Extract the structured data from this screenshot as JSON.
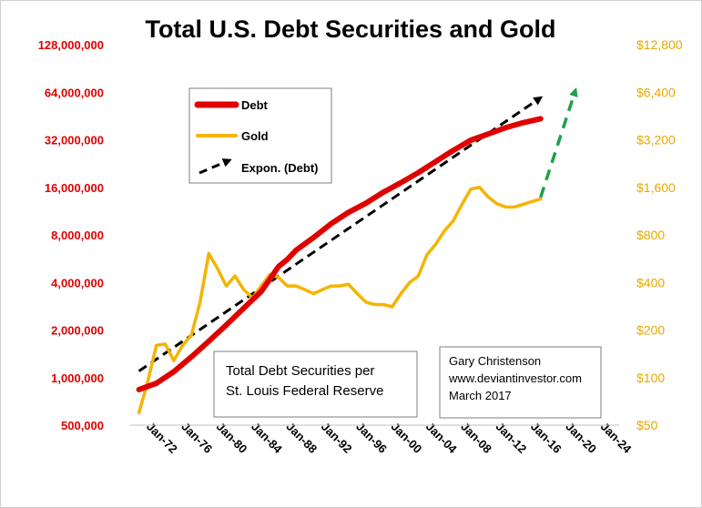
{
  "chart_data": {
    "type": "line",
    "title": "Total U.S. Debt Securities and Gold",
    "x_ticks": [
      "Jan-72",
      "Jan-76",
      "Jan-80",
      "Jan-84",
      "Jan-88",
      "Jan-92",
      "Jan-96",
      "Jan-00",
      "Jan-04",
      "Jan-08",
      "Jan-12",
      "Jan-16",
      "Jan-20",
      "Jan-24"
    ],
    "xlim": [
      1969,
      2025
    ],
    "left_axis": {
      "scale": "log",
      "ylim": [
        500000,
        128000000
      ],
      "ticks": [
        "500,000",
        "1,000,000",
        "2,000,000",
        "4,000,000",
        "8,000,000",
        "16,000,000",
        "32,000,000",
        "64,000,000",
        "128,000,000"
      ],
      "tick_color": "#e00000"
    },
    "right_axis": {
      "scale": "log",
      "ylim": [
        50,
        12800
      ],
      "ticks": [
        "$50",
        "$100",
        "$200",
        "$400",
        "$800",
        "$1,600",
        "$3,200",
        "$6,400",
        "$12,800"
      ],
      "tick_color": "#e8a800"
    },
    "series": [
      {
        "name": "Debt",
        "axis": "left",
        "color": "#e00000",
        "x": [
          1970,
          1972,
          1974,
          1976,
          1978,
          1980,
          1982,
          1984,
          1985,
          1986,
          1987,
          1988,
          1990,
          1992,
          1994,
          1996,
          1998,
          2000,
          2002,
          2004,
          2006,
          2008,
          2010,
          2012,
          2014,
          2016
        ],
        "y": [
          840000,
          920000,
          1090000,
          1350000,
          1700000,
          2150000,
          2750000,
          3500000,
          4200000,
          5050000,
          5600000,
          6400000,
          7700000,
          9400000,
          11100000,
          12700000,
          14900000,
          17100000,
          19800000,
          23300000,
          27400000,
          31800000,
          34800000,
          38100000,
          41000000,
          43500000
        ]
      },
      {
        "name": "Gold",
        "axis": "right",
        "color": "#f5b400",
        "x": [
          1970,
          1971,
          1972,
          1973,
          1974,
          1975,
          1976,
          1977,
          1978,
          1979,
          1980,
          1981,
          1982,
          1983,
          1984,
          1985,
          1986,
          1987,
          1988,
          1989,
          1990,
          1991,
          1992,
          1993,
          1994,
          1995,
          1996,
          1997,
          1998,
          1999,
          2000,
          2001,
          2002,
          2003,
          2004,
          2005,
          2006,
          2007,
          2008,
          2009,
          2010,
          2011,
          2012,
          2013,
          2014,
          2015,
          2016
        ],
        "y": [
          60,
          94,
          160,
          163,
          128,
          160,
          185,
          300,
          610,
          490,
          380,
          440,
          360,
          320,
          380,
          450,
          430,
          380,
          380,
          360,
          340,
          360,
          380,
          380,
          390,
          340,
          300,
          290,
          290,
          280,
          340,
          400,
          440,
          600,
          700,
          850,
          980,
          1250,
          1560,
          1600,
          1390,
          1260,
          1200,
          1200,
          1250,
          1300,
          1350
        ]
      },
      {
        "name": "Expon. (Debt)",
        "axis": "left",
        "color": "#000000",
        "dashed": true,
        "x": [
          1970,
          2016
        ],
        "y": [
          1100000,
          59000000
        ]
      },
      {
        "name": "",
        "axis": "right",
        "color": "#1ea24b",
        "dashed": true,
        "arrow": true,
        "x": [
          2016,
          2020
        ],
        "y": [
          1380,
          6600
        ]
      }
    ],
    "legend": {
      "placement": "top-left",
      "entries": [
        {
          "name": "Debt",
          "color": "#e00000",
          "style": "solid"
        },
        {
          "name": "Gold",
          "color": "#f5b400",
          "style": "solid"
        },
        {
          "name": "Expon. (Debt)",
          "color": "#000000",
          "style": "dashed-arrow"
        }
      ]
    },
    "annotations": {
      "source_lines": [
        "Total Debt Securities per",
        "St. Louis Federal Reserve"
      ],
      "credit_lines": [
        "Gary Christenson",
        "www.deviantinvestor.com",
        "March 2017"
      ]
    },
    "grid": false
  }
}
